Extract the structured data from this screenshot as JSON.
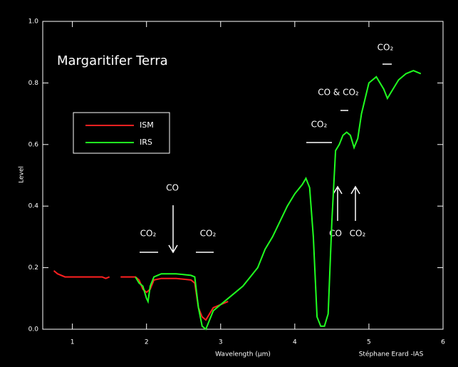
{
  "chart_data": {
    "type": "line",
    "title": "Margaritifer Terra",
    "x_label": "Wavelength (μm)",
    "y_label": "Level",
    "credit": "Stéphane Erard -IAS",
    "annotations": [
      "CO₂",
      "CO",
      "CO₂",
      "CO₂",
      "CO & CO₂",
      "CO₂",
      "CO",
      "CO₂"
    ],
    "xlim": [
      0.6,
      6
    ],
    "xticks": [
      1,
      2,
      3,
      4,
      5,
      6
    ],
    "ylim": [
      0,
      1
    ],
    "yticks": [
      {
        "value": 0,
        "label": "0.0"
      },
      0.2,
      0.4,
      0.6,
      0.8,
      {
        "value": 1,
        "label": "1.0"
      }
    ],
    "legend": "left",
    "series": [
      {
        "name": "ISM",
        "color": "#ff2020",
        "x": [
          0.75,
          0.8,
          0.9,
          1.0,
          1.2,
          1.4,
          1.45,
          1.5,
          1.58,
          1.65,
          1.85,
          1.9,
          1.95,
          2.0,
          2.05,
          2.1,
          2.2,
          2.4,
          2.6,
          2.65,
          2.7,
          2.75,
          2.8,
          2.85,
          2.9,
          3.0,
          3.1
        ],
        "values": [
          0.19,
          0.18,
          0.17,
          0.17,
          0.17,
          0.17,
          0.165,
          0.17,
          null,
          0.17,
          0.17,
          0.16,
          0.13,
          0.12,
          0.13,
          0.16,
          0.165,
          0.165,
          0.16,
          0.15,
          0.07,
          0.04,
          0.03,
          0.05,
          0.07,
          0.08,
          0.09
        ]
      },
      {
        "name": "IRS",
        "color": "#20ff20",
        "x": [
          1.85,
          1.9,
          1.95,
          2.0,
          2.02,
          2.05,
          2.1,
          2.2,
          2.4,
          2.6,
          2.65,
          2.7,
          2.75,
          2.8,
          2.85,
          2.9,
          3.0,
          3.1,
          3.2,
          3.3,
          3.4,
          3.5,
          3.6,
          3.7,
          3.8,
          3.9,
          4.0,
          4.1,
          4.15,
          4.2,
          4.25,
          4.3,
          4.35,
          4.4,
          4.45,
          4.5,
          4.55,
          4.6,
          4.65,
          4.7,
          4.75,
          4.8,
          4.85,
          4.9,
          4.95,
          5.0,
          5.1,
          5.2,
          5.25,
          5.3,
          5.4,
          5.5,
          5.6,
          5.7
        ],
        "values": [
          0.17,
          0.15,
          0.14,
          0.1,
          0.09,
          0.14,
          0.17,
          0.18,
          0.18,
          0.175,
          0.17,
          0.07,
          0.01,
          0.0,
          0.03,
          0.06,
          0.08,
          0.1,
          0.12,
          0.14,
          0.17,
          0.2,
          0.26,
          0.3,
          0.35,
          0.4,
          0.44,
          0.47,
          0.49,
          0.46,
          0.3,
          0.04,
          0.01,
          0.01,
          0.05,
          0.35,
          0.58,
          0.6,
          0.63,
          0.64,
          0.63,
          0.59,
          0.62,
          0.7,
          0.75,
          0.8,
          0.82,
          0.78,
          0.75,
          0.77,
          0.81,
          0.83,
          0.84,
          0.83
        ]
      }
    ]
  }
}
